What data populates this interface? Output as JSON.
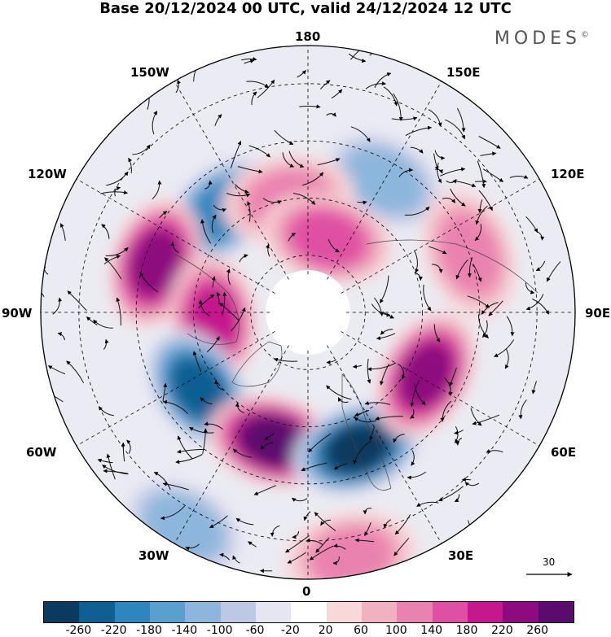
{
  "title": "Base 20/12/2024 00 UTC, valid 24/12/2024 12 UTC",
  "brand": "MODES",
  "brand_mark": "©",
  "lon_labels": {
    "n180": "180",
    "w150": "150W",
    "e150": "150E",
    "w120": "120W",
    "e120": "120E",
    "w90": "90W",
    "e90": "90E",
    "w60": "60W",
    "e60": "60E",
    "w30": "30W",
    "e30": "30E",
    "s0": "0"
  },
  "reference_vector": "30",
  "colorbar": {
    "ticks": [
      "-260",
      "-220",
      "-180",
      "-140",
      "-100",
      "-60",
      "-20",
      "20",
      "60",
      "100",
      "140",
      "180",
      "220",
      "260"
    ],
    "colors": [
      "#0b3a5f",
      "#0f5f93",
      "#2f85bd",
      "#5aa0cf",
      "#8db6dc",
      "#bcc8e4",
      "#e6e6f2",
      "#ffffff",
      "#f8d8d9",
      "#f0b1c0",
      "#ea82b0",
      "#df4fa3",
      "#c5188f",
      "#8d0a7f",
      "#5b0a6e"
    ]
  },
  "anomaly_centers": [
    {
      "lon": -140,
      "lat": 55,
      "value": -200
    },
    {
      "lon": -108,
      "lat": 48,
      "value": 220
    },
    {
      "lon": -85,
      "lat": 65,
      "value": 180
    },
    {
      "lon": -55,
      "lat": 55,
      "value": -220
    },
    {
      "lon": -15,
      "lat": 55,
      "value": 260
    },
    {
      "lon": 20,
      "lat": 52,
      "value": -260
    },
    {
      "lon": 62,
      "lat": 55,
      "value": 220
    },
    {
      "lon": 150,
      "lat": 50,
      "value": -100
    },
    {
      "lon": -170,
      "lat": 60,
      "value": 100
    },
    {
      "lon": 165,
      "lat": 70,
      "value": 140
    },
    {
      "lon": 110,
      "lat": 45,
      "value": 100
    },
    {
      "lon": -30,
      "lat": 25,
      "value": -100
    },
    {
      "lon": 10,
      "lat": 25,
      "value": 100
    }
  ]
}
